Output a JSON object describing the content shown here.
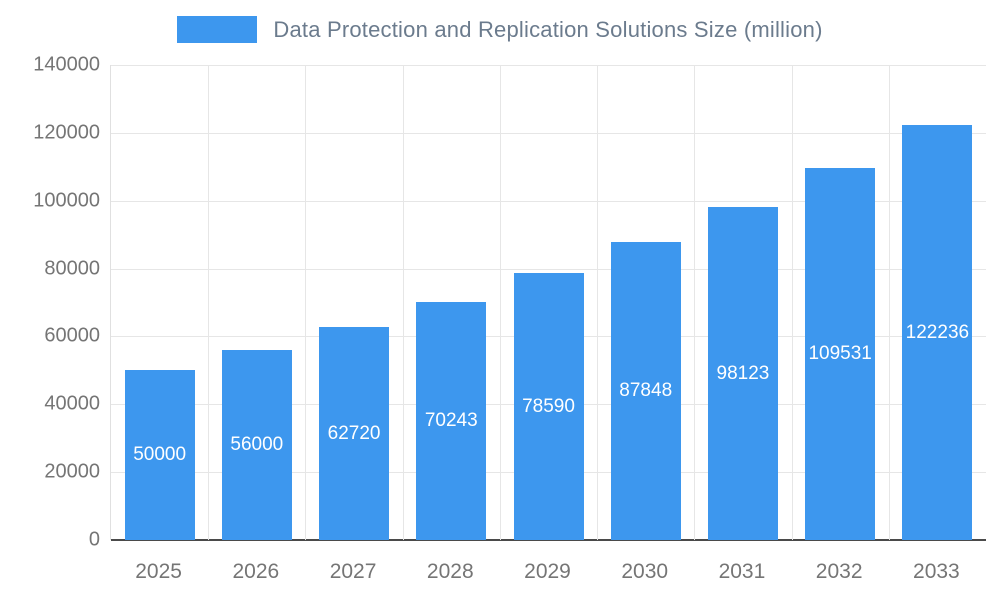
{
  "legend": {
    "label": "Data Protection and Replication Solutions Size (million)"
  },
  "chart_data": {
    "type": "bar",
    "title": "Data Protection and Replication Solutions Size (million)",
    "categories": [
      "2025",
      "2026",
      "2027",
      "2028",
      "2029",
      "2030",
      "2031",
      "2032",
      "2033"
    ],
    "values": [
      50000,
      56000,
      62720,
      70243,
      78590,
      87848,
      98123,
      109531,
      122236
    ],
    "xlabel": "",
    "ylabel": "",
    "ylim": [
      0,
      140000
    ],
    "ytick_interval": 20000,
    "ytick_labels": [
      "0",
      "20000",
      "40000",
      "60000",
      "80000",
      "100000",
      "120000",
      "140000"
    ],
    "grid": true,
    "legend_position": "top",
    "colors": {
      "bar": "#3d97ee",
      "bar_label": "#ffffff",
      "title_text": "#6b7b8d",
      "axis_text": "#757575",
      "grid_line": "#e6e6e6",
      "baseline": "#4a4a4a"
    }
  }
}
